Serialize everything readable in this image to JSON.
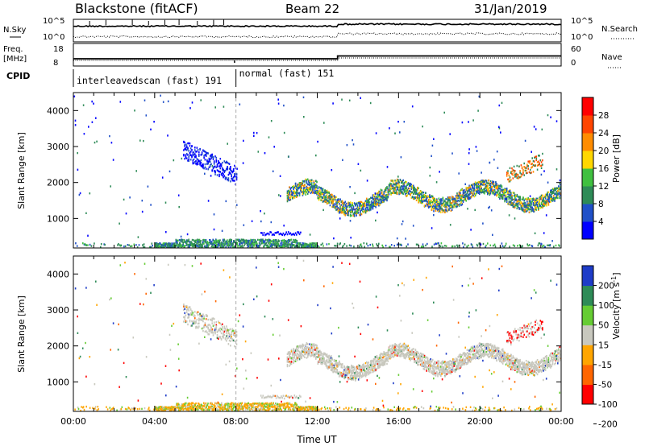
{
  "header": {
    "station": "Blackstone (fitACF)",
    "beam": "Beam 22",
    "date": "31/Jan/2019"
  },
  "indicators": {
    "nsky_label": "N.Sky",
    "nsky_tick_top": "10^5",
    "nsky_tick_bottom": "10^0",
    "nsearch_label": "N.Search",
    "nsearch_tick_top": "10^5",
    "nsearch_tick_bottom": "10^0",
    "freq_label": "Freq.",
    "freq_unit": "[MHz]",
    "freq_tick_top": "18",
    "freq_tick_bottom": "8",
    "nave_label": "Nave",
    "nave_tick_top": "60",
    "nave_tick_bottom": "0",
    "cpid_label": "CPID",
    "cpid_segments": [
      {
        "label": "interleavedscan (fast) 191",
        "start_hour": 0,
        "end_hour": 8
      },
      {
        "label": "normal (fast) 151",
        "start_hour": 8,
        "end_hour": 24
      }
    ]
  },
  "colors": {
    "power": [
      "#0000ff",
      "#2050c8",
      "#2e8b57",
      "#40c040",
      "#ffd700",
      "#ff8c00",
      "#ff4500",
      "#ff0000"
    ],
    "velocity": [
      "#1e3cc8",
      "#2e8b57",
      "#66cc33",
      "#c8c8be",
      "#ffa500",
      "#ff6600",
      "#ff0000"
    ]
  },
  "chart_data": [
    {
      "type": "heatmap",
      "panel": "power",
      "ylabel": "Slant Range [km]",
      "xlabel": "",
      "x_range_hours": [
        0,
        24
      ],
      "ylim": [
        180,
        4500
      ],
      "yticks": [
        "1000",
        "2000",
        "3000",
        "4000"
      ],
      "colorbar_label": "Power [dB]",
      "colorbar_ticks": [
        "4",
        "8",
        "12",
        "16",
        "20",
        "24",
        "28"
      ],
      "colorbar_range": [
        0,
        32
      ]
    },
    {
      "type": "heatmap",
      "panel": "velocity",
      "ylabel": "Slant Range [km]",
      "xlabel": "Time UT",
      "x_range_hours": [
        0,
        24
      ],
      "ylim": [
        180,
        4500
      ],
      "yticks": [
        "1000",
        "2000",
        "3000",
        "4000"
      ],
      "xticks": [
        "00:00",
        "04:00",
        "08:00",
        "12:00",
        "16:00",
        "20:00",
        "00:00"
      ],
      "colorbar_label": "Velocity [m s",
      "colorbar_label_sup": "-1",
      "colorbar_label_end": "]",
      "colorbar_ticks": [
        "200",
        "100",
        "50",
        "15",
        "-15",
        "-50",
        "-100",
        "-200"
      ]
    }
  ]
}
